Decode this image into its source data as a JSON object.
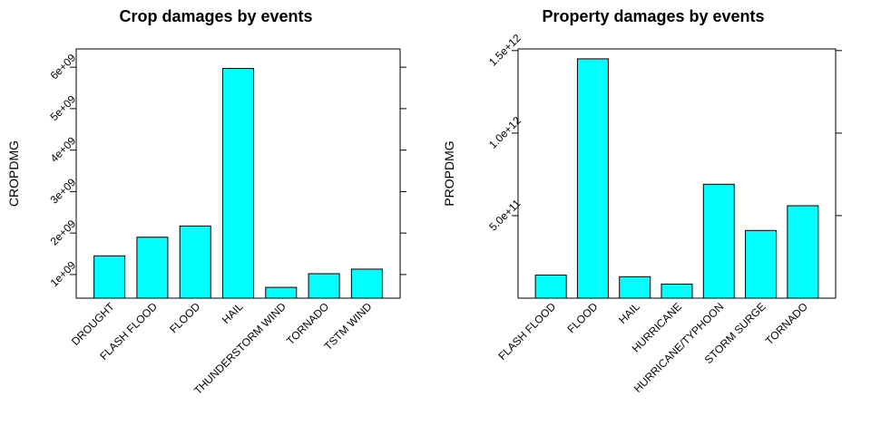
{
  "chart_data": [
    {
      "type": "bar",
      "title": "Crop damages by events",
      "xlabel": "",
      "ylabel": "CROPDMG",
      "categories": [
        "DROUGHT",
        "FLASH FLOOD",
        "FLOOD",
        "HAIL",
        "THUNDERSTORM WIND",
        "TORNADO",
        "TSTM WIND"
      ],
      "values": [
        1450000000,
        1900000000,
        2170000000,
        5970000000,
        690000000,
        1020000000,
        1130000000
      ],
      "ylim": [
        430000000,
        6440000000
      ],
      "yticks": [
        1000000000,
        2000000000,
        3000000000,
        4000000000,
        5000000000,
        6000000000
      ],
      "ytick_labels": [
        "1e+09",
        "2e+09",
        "3e+09",
        "4e+09",
        "5e+09",
        "6e+09"
      ],
      "bar_color": "#00FFFF",
      "grid": false,
      "legend": "none"
    },
    {
      "type": "bar",
      "title": "Property damages by events",
      "xlabel": "",
      "ylabel": "PROPDMG",
      "categories": [
        "FLASH FLOOD",
        "FLOOD",
        "HAIL",
        "HURRICANE",
        "HURRICANE/TYPHOON",
        "STORM SURGE",
        "TORNADO"
      ],
      "values": [
        140000000000,
        1450000000000,
        130000000000,
        85000000000,
        690000000000,
        410000000000,
        560000000000
      ],
      "ylim": [
        0,
        1510000000000
      ],
      "yticks": [
        500000000000,
        1000000000000,
        1500000000000
      ],
      "ytick_labels": [
        "5.0e+11",
        "1.0e+12",
        "1.5e+12"
      ],
      "bar_color": "#00FFFF",
      "grid": false,
      "legend": "none"
    }
  ]
}
